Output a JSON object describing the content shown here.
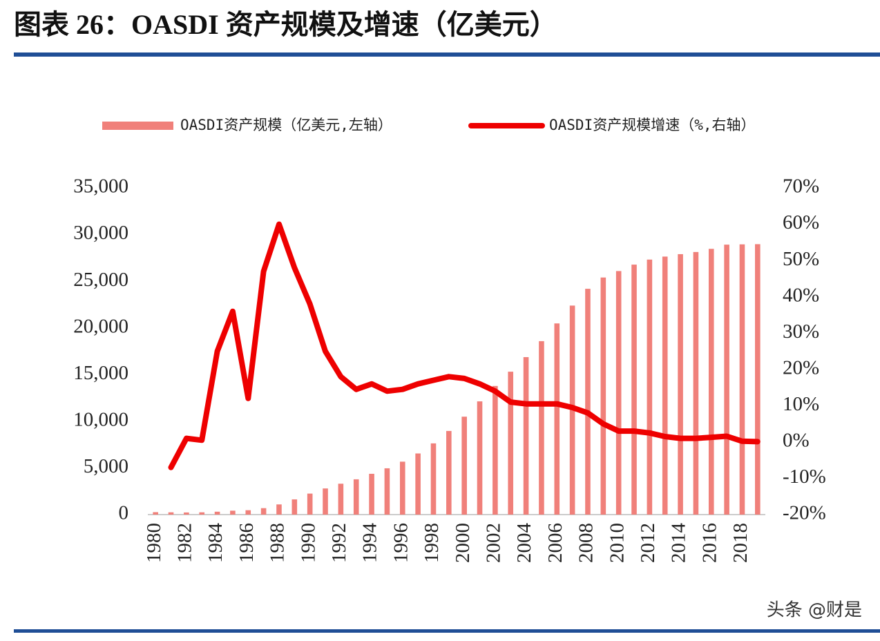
{
  "chart_data": {
    "type": "bar-line",
    "title": "图表 26：OASDI 资产规模及增速（亿美元）",
    "watermark": "头条 @财是",
    "categories": [
      "1980",
      null,
      "1982",
      null,
      "1984",
      null,
      "1986",
      null,
      "1988",
      null,
      "1990",
      null,
      "1992",
      null,
      "1994",
      null,
      "1996",
      null,
      "1998",
      null,
      "2000",
      null,
      "2002",
      null,
      "2004",
      null,
      "2006",
      null,
      "2008",
      null,
      "2010",
      null,
      "2012",
      null,
      "2014",
      null,
      "2016",
      null,
      "2018",
      null
    ],
    "series": [
      {
        "name": "OASDI资产规模（亿美元,左轴）",
        "type": "bar",
        "color": "#f0807a",
        "values": [
          260,
          245,
          228,
          245,
          310,
          420,
          470,
          690,
          1090,
          1630,
          2250,
          2800,
          3310,
          3780,
          4370,
          4960,
          5670,
          6550,
          7630,
          8960,
          10490,
          12130,
          13780,
          15310,
          16870,
          18580,
          20480,
          22390,
          24190,
          25400,
          26090,
          26780,
          27320,
          27640,
          27900,
          28130,
          28470,
          28920,
          28950,
          28970
        ]
      },
      {
        "name": "OASDI资产规模增速（%,右轴）",
        "type": "line",
        "axis": "y2",
        "color": "#ee0000",
        "values": [
          null,
          -7,
          1,
          0.5,
          25,
          36,
          12,
          47,
          60,
          48,
          38,
          25,
          18,
          14.5,
          16,
          14,
          14.5,
          16,
          17,
          18,
          17.5,
          16,
          14,
          11,
          10.5,
          10.5,
          10.5,
          9.5,
          8,
          5,
          3,
          3,
          2.5,
          1.5,
          1,
          1,
          1.3,
          1.6,
          0.2,
          0.1
        ]
      }
    ],
    "ylim": [
      0,
      35000
    ],
    "yticks": [
      0,
      {
        "value": 5000,
        "label": "5,000"
      },
      {
        "value": 10000,
        "label": "10,000"
      },
      {
        "value": 15000,
        "label": "15,000"
      },
      {
        "value": 20000,
        "label": "20,000"
      },
      {
        "value": 25000,
        "label": "25,000"
      },
      {
        "value": 30000,
        "label": "30,000"
      },
      {
        "value": 35000,
        "label": "35,000"
      }
    ],
    "y2lim": [
      -20,
      70
    ],
    "y2ticks": [
      {
        "value": -20,
        "label": "-20%"
      },
      {
        "value": -10,
        "label": "-10%"
      },
      {
        "value": 0,
        "label": "0%"
      },
      {
        "value": 10,
        "label": "10%"
      },
      {
        "value": 20,
        "label": "20%"
      },
      {
        "value": 30,
        "label": "30%"
      },
      {
        "value": 40,
        "label": "40%"
      },
      {
        "value": 50,
        "label": "50%"
      },
      {
        "value": 60,
        "label": "60%"
      },
      {
        "value": 70,
        "label": "70%"
      }
    ],
    "legend": "top"
  }
}
